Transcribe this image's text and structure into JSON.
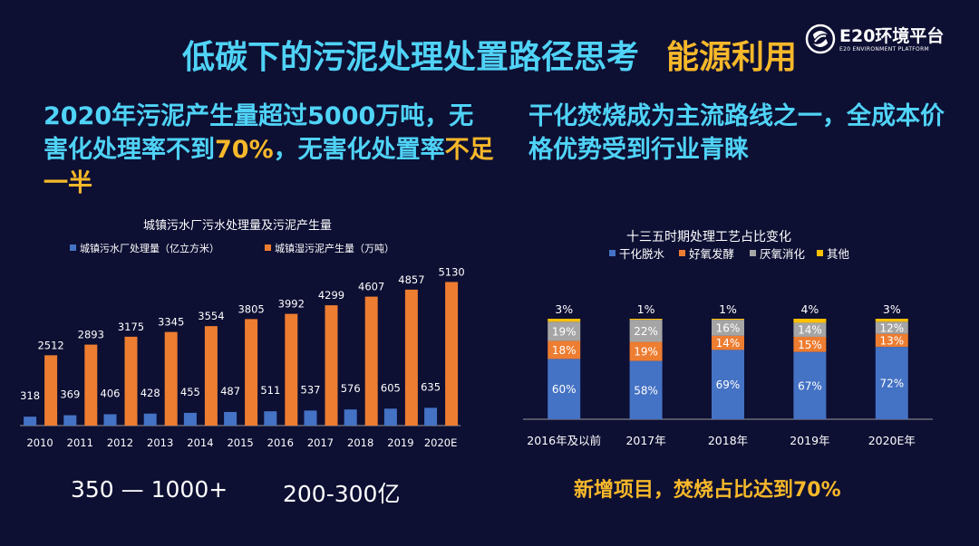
{
  "title": {
    "main": "低碳下的污泥处理处置路径思考",
    "highlight": "能源利用"
  },
  "logo": {
    "name": "E20环境平台",
    "subtitle": "E20 ENVIRONMENT PLATFORM"
  },
  "left_heading": {
    "p1": "2020年污泥产生量超过5000万吨，无害化处理率不到",
    "p2": "70%",
    "p3": "，无害化处置率",
    "p4": "不足一半"
  },
  "right_heading": "干化焚烧成为主流路线之一，全成本价格优势受到行业青睐",
  "stats": {
    "s1": "350 — 1000+",
    "s2": "200-300亿"
  },
  "right_note": "新增项目，焚烧占比达到70%",
  "colors": {
    "background": "#0d0f33",
    "blue": "#4472c4",
    "orange": "#ed7d31",
    "gray": "#a5a5a5",
    "yellow": "#ffc000",
    "cyan": "#4fd3f6",
    "gold": "#f7b82a"
  },
  "chart_data": [
    {
      "type": "bar",
      "title": "城镇污水厂污水处理量及污泥产生量",
      "categories": [
        "2010",
        "2011",
        "2012",
        "2013",
        "2014",
        "2015",
        "2016",
        "2017",
        "2018",
        "2019",
        "2020E"
      ],
      "series": [
        {
          "name": "城镇污水厂处理量（亿立方米）",
          "color": "#4472c4",
          "values": [
            318,
            369,
            406,
            428,
            455,
            487,
            511,
            537,
            576,
            605,
            635
          ]
        },
        {
          "name": "城镇湿污泥产生量（万吨）",
          "color": "#ed7d31",
          "values": [
            2512,
            2893,
            3175,
            3345,
            3554,
            3805,
            3992,
            4299,
            4607,
            4857,
            5130
          ]
        }
      ],
      "ylim": [
        0,
        5500
      ]
    },
    {
      "type": "bar",
      "stacked": true,
      "title": "十三五时期处理工艺占比变化",
      "categories": [
        "2016年及以前",
        "2017年",
        "2018年",
        "2019年",
        "2020E年"
      ],
      "series": [
        {
          "name": "干化脱水",
          "color": "#4472c4",
          "values": [
            60,
            58,
            69,
            67,
            72
          ]
        },
        {
          "name": "好氧发酵",
          "color": "#ed7d31",
          "values": [
            18,
            19,
            14,
            15,
            13
          ]
        },
        {
          "name": "厌氧消化",
          "color": "#a5a5a5",
          "values": [
            19,
            22,
            16,
            14,
            12
          ]
        },
        {
          "name": "其他",
          "color": "#ffc000",
          "values": [
            3,
            1,
            1,
            4,
            3
          ]
        }
      ],
      "ylim": [
        0,
        100
      ]
    }
  ]
}
